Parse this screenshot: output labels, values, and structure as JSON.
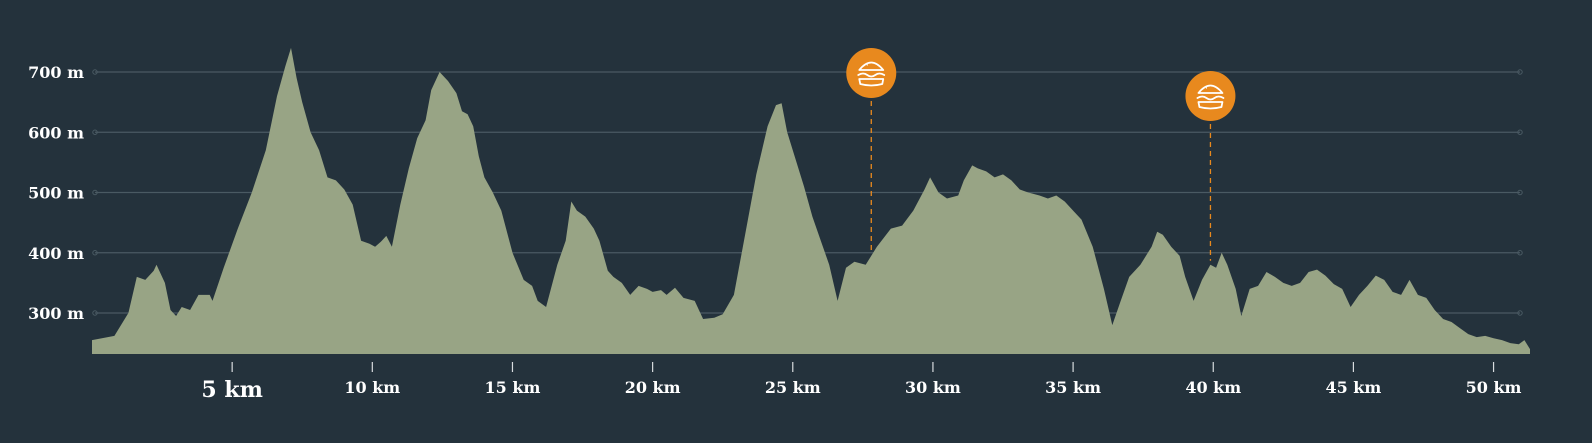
{
  "colors": {
    "background": "#24323c",
    "area_fill": "#98a485",
    "gridline": "#4a5a63",
    "text": "#ffffff",
    "marker": "#e8891e",
    "marker_line": "#e8891e"
  },
  "chart_data": {
    "type": "area",
    "title": "",
    "xlabel": "",
    "ylabel": "",
    "x_unit": "km",
    "y_unit": "m",
    "xlim": [
      0,
      51.3
    ],
    "ylim": [
      232,
      740
    ],
    "grid": true,
    "y_ticks": [
      {
        "value": 300,
        "label": "300 m"
      },
      {
        "value": 400,
        "label": "400 m"
      },
      {
        "value": 500,
        "label": "500 m"
      },
      {
        "value": 600,
        "label": "600 m"
      },
      {
        "value": 700,
        "label": "700 m"
      }
    ],
    "x_ticks": [
      {
        "value": 5,
        "label": "5 km",
        "major": true
      },
      {
        "value": 10,
        "label": "10 km"
      },
      {
        "value": 15,
        "label": "15 km"
      },
      {
        "value": 20,
        "label": "20 km"
      },
      {
        "value": 25,
        "label": "25 km"
      },
      {
        "value": 30,
        "label": "30 km"
      },
      {
        "value": 35,
        "label": "35 km"
      },
      {
        "value": 40,
        "label": "40 km"
      },
      {
        "value": 45,
        "label": "45 km"
      },
      {
        "value": 50,
        "label": "50 km"
      }
    ],
    "markers": [
      {
        "x": 27.8,
        "icon": "burger-icon",
        "name": "food-stop"
      },
      {
        "x": 39.9,
        "icon": "burger-icon",
        "name": "food-stop"
      }
    ],
    "series": [
      {
        "points": [
          [
            0,
            255
          ],
          [
            0.8,
            262
          ],
          [
            1.3,
            300
          ],
          [
            1.6,
            360
          ],
          [
            1.9,
            355
          ],
          [
            2.2,
            370
          ],
          [
            2.3,
            380
          ],
          [
            2.6,
            350
          ],
          [
            2.8,
            305
          ],
          [
            3.0,
            295
          ],
          [
            3.2,
            310
          ],
          [
            3.5,
            305
          ],
          [
            3.8,
            330
          ],
          [
            4.2,
            330
          ],
          [
            4.3,
            320
          ],
          [
            4.7,
            375
          ],
          [
            5.2,
            440
          ],
          [
            5.7,
            500
          ],
          [
            6.2,
            570
          ],
          [
            6.6,
            660
          ],
          [
            6.9,
            710
          ],
          [
            7.1,
            740
          ],
          [
            7.3,
            690
          ],
          [
            7.5,
            650
          ],
          [
            7.8,
            600
          ],
          [
            8.1,
            570
          ],
          [
            8.4,
            525
          ],
          [
            8.7,
            520
          ],
          [
            9.0,
            505
          ],
          [
            9.3,
            480
          ],
          [
            9.6,
            420
          ],
          [
            9.9,
            415
          ],
          [
            10.1,
            410
          ],
          [
            10.3,
            418
          ],
          [
            10.5,
            428
          ],
          [
            10.7,
            410
          ],
          [
            11.0,
            480
          ],
          [
            11.3,
            540
          ],
          [
            11.6,
            590
          ],
          [
            11.9,
            620
          ],
          [
            12.1,
            670
          ],
          [
            12.4,
            700
          ],
          [
            12.7,
            685
          ],
          [
            13.0,
            665
          ],
          [
            13.2,
            635
          ],
          [
            13.4,
            630
          ],
          [
            13.6,
            610
          ],
          [
            13.8,
            560
          ],
          [
            14.0,
            525
          ],
          [
            14.3,
            500
          ],
          [
            14.6,
            470
          ],
          [
            15.0,
            400
          ],
          [
            15.4,
            355
          ],
          [
            15.7,
            345
          ],
          [
            15.9,
            320
          ],
          [
            16.2,
            310
          ],
          [
            16.6,
            380
          ],
          [
            16.9,
            420
          ],
          [
            17.1,
            485
          ],
          [
            17.3,
            470
          ],
          [
            17.6,
            460
          ],
          [
            17.9,
            440
          ],
          [
            18.1,
            420
          ],
          [
            18.4,
            370
          ],
          [
            18.6,
            360
          ],
          [
            18.9,
            350
          ],
          [
            19.2,
            330
          ],
          [
            19.5,
            345
          ],
          [
            19.8,
            340
          ],
          [
            20.0,
            335
          ],
          [
            20.3,
            338
          ],
          [
            20.5,
            330
          ],
          [
            20.8,
            342
          ],
          [
            21.1,
            325
          ],
          [
            21.5,
            320
          ],
          [
            21.8,
            290
          ],
          [
            22.2,
            292
          ],
          [
            22.5,
            298
          ],
          [
            22.9,
            330
          ],
          [
            23.3,
            430
          ],
          [
            23.7,
            530
          ],
          [
            24.1,
            610
          ],
          [
            24.4,
            645
          ],
          [
            24.6,
            648
          ],
          [
            24.8,
            600
          ],
          [
            25.1,
            555
          ],
          [
            25.4,
            510
          ],
          [
            25.7,
            460
          ],
          [
            26.0,
            420
          ],
          [
            26.3,
            380
          ],
          [
            26.6,
            320
          ],
          [
            26.9,
            375
          ],
          [
            27.2,
            385
          ],
          [
            27.6,
            380
          ],
          [
            28.0,
            410
          ],
          [
            28.5,
            440
          ],
          [
            28.9,
            445
          ],
          [
            29.3,
            470
          ],
          [
            29.7,
            505
          ],
          [
            29.9,
            525
          ],
          [
            30.2,
            500
          ],
          [
            30.5,
            490
          ],
          [
            30.9,
            495
          ],
          [
            31.1,
            520
          ],
          [
            31.4,
            545
          ],
          [
            31.6,
            540
          ],
          [
            31.9,
            535
          ],
          [
            32.2,
            525
          ],
          [
            32.5,
            530
          ],
          [
            32.8,
            520
          ],
          [
            33.1,
            505
          ],
          [
            33.4,
            500
          ],
          [
            33.8,
            495
          ],
          [
            34.1,
            490
          ],
          [
            34.4,
            495
          ],
          [
            34.7,
            485
          ],
          [
            35.0,
            470
          ],
          [
            35.3,
            455
          ],
          [
            35.7,
            410
          ],
          [
            36.1,
            340
          ],
          [
            36.4,
            280
          ],
          [
            36.7,
            320
          ],
          [
            37.0,
            360
          ],
          [
            37.4,
            380
          ],
          [
            37.8,
            410
          ],
          [
            38.0,
            435
          ],
          [
            38.2,
            430
          ],
          [
            38.5,
            410
          ],
          [
            38.8,
            395
          ],
          [
            39.0,
            360
          ],
          [
            39.3,
            320
          ],
          [
            39.6,
            355
          ],
          [
            39.9,
            380
          ],
          [
            40.1,
            375
          ],
          [
            40.3,
            400
          ],
          [
            40.5,
            380
          ],
          [
            40.8,
            340
          ],
          [
            41.0,
            295
          ],
          [
            41.3,
            340
          ],
          [
            41.6,
            345
          ],
          [
            41.9,
            368
          ],
          [
            42.2,
            360
          ],
          [
            42.5,
            350
          ],
          [
            42.8,
            345
          ],
          [
            43.1,
            350
          ],
          [
            43.4,
            368
          ],
          [
            43.7,
            372
          ],
          [
            44.0,
            362
          ],
          [
            44.3,
            348
          ],
          [
            44.6,
            340
          ],
          [
            44.9,
            310
          ],
          [
            45.2,
            330
          ],
          [
            45.5,
            345
          ],
          [
            45.8,
            362
          ],
          [
            46.1,
            355
          ],
          [
            46.4,
            335
          ],
          [
            46.7,
            330
          ],
          [
            47.0,
            355
          ],
          [
            47.3,
            330
          ],
          [
            47.6,
            325
          ],
          [
            47.9,
            305
          ],
          [
            48.2,
            290
          ],
          [
            48.5,
            285
          ],
          [
            48.8,
            275
          ],
          [
            49.1,
            265
          ],
          [
            49.4,
            260
          ],
          [
            49.7,
            262
          ],
          [
            50.0,
            258
          ],
          [
            50.3,
            255
          ],
          [
            50.6,
            250
          ],
          [
            50.9,
            248
          ],
          [
            51.1,
            255
          ],
          [
            51.3,
            240
          ]
        ]
      }
    ]
  }
}
